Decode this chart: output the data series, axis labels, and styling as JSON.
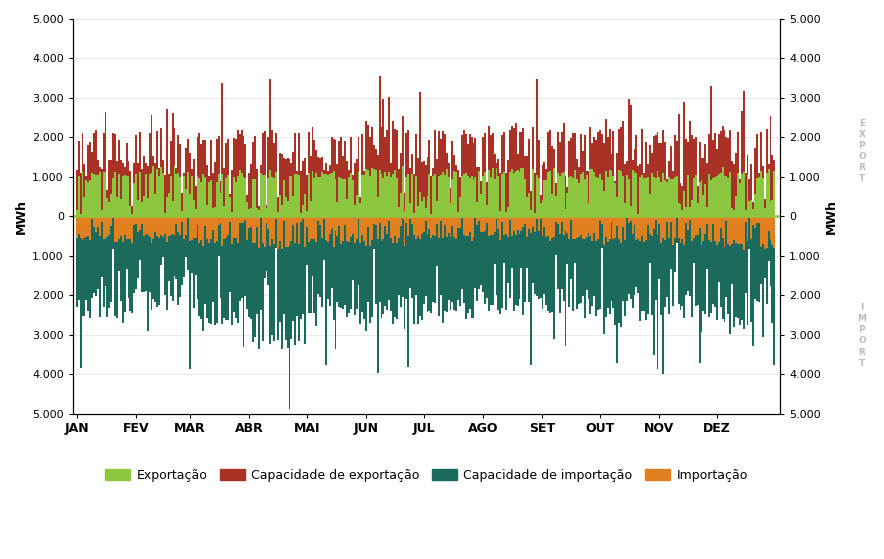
{
  "months": [
    "JAN",
    "FEV",
    "MAR",
    "ABR",
    "MAI",
    "JUN",
    "JUL",
    "AGO",
    "SET",
    "OUT",
    "NOV",
    "DEZ"
  ],
  "n_days": [
    31,
    28,
    31,
    30,
    31,
    30,
    31,
    31,
    30,
    31,
    30,
    31
  ],
  "ylim": [
    -5000,
    5000
  ],
  "yticks": [
    -5000,
    -4000,
    -3000,
    -2000,
    -1000,
    0,
    1000,
    2000,
    3000,
    4000,
    5000
  ],
  "ytick_labels_left": [
    "5.000",
    "4.000",
    "3.000",
    "2.000",
    "1.000",
    "0",
    "1.000",
    "2.000",
    "3.000",
    "4.000",
    "5.000"
  ],
  "ytick_labels_right": [
    "5.000",
    "4.000",
    "3.000",
    "2.000",
    "1.000",
    "0",
    "1.000",
    "2.000",
    "3.000",
    "4.000",
    "5.000"
  ],
  "ylabel_left": "MWh",
  "ylabel_right": "MWh",
  "color_exportacao": "#8dc63f",
  "color_cap_exportacao": "#a93226",
  "color_cap_importacao": "#1a6b5c",
  "color_importacao": "#e08020",
  "color_zero_line": "#8dc63f",
  "background_color": "#ffffff",
  "legend_items": [
    "Exportação",
    "Capacidade de exportação",
    "Capacidade de importação",
    "Importação"
  ],
  "legend_colors": [
    "#8dc63f",
    "#a93226",
    "#1a6b5c",
    "#e08020"
  ],
  "export_text": "EXPORT",
  "import_text": "IMPORT"
}
